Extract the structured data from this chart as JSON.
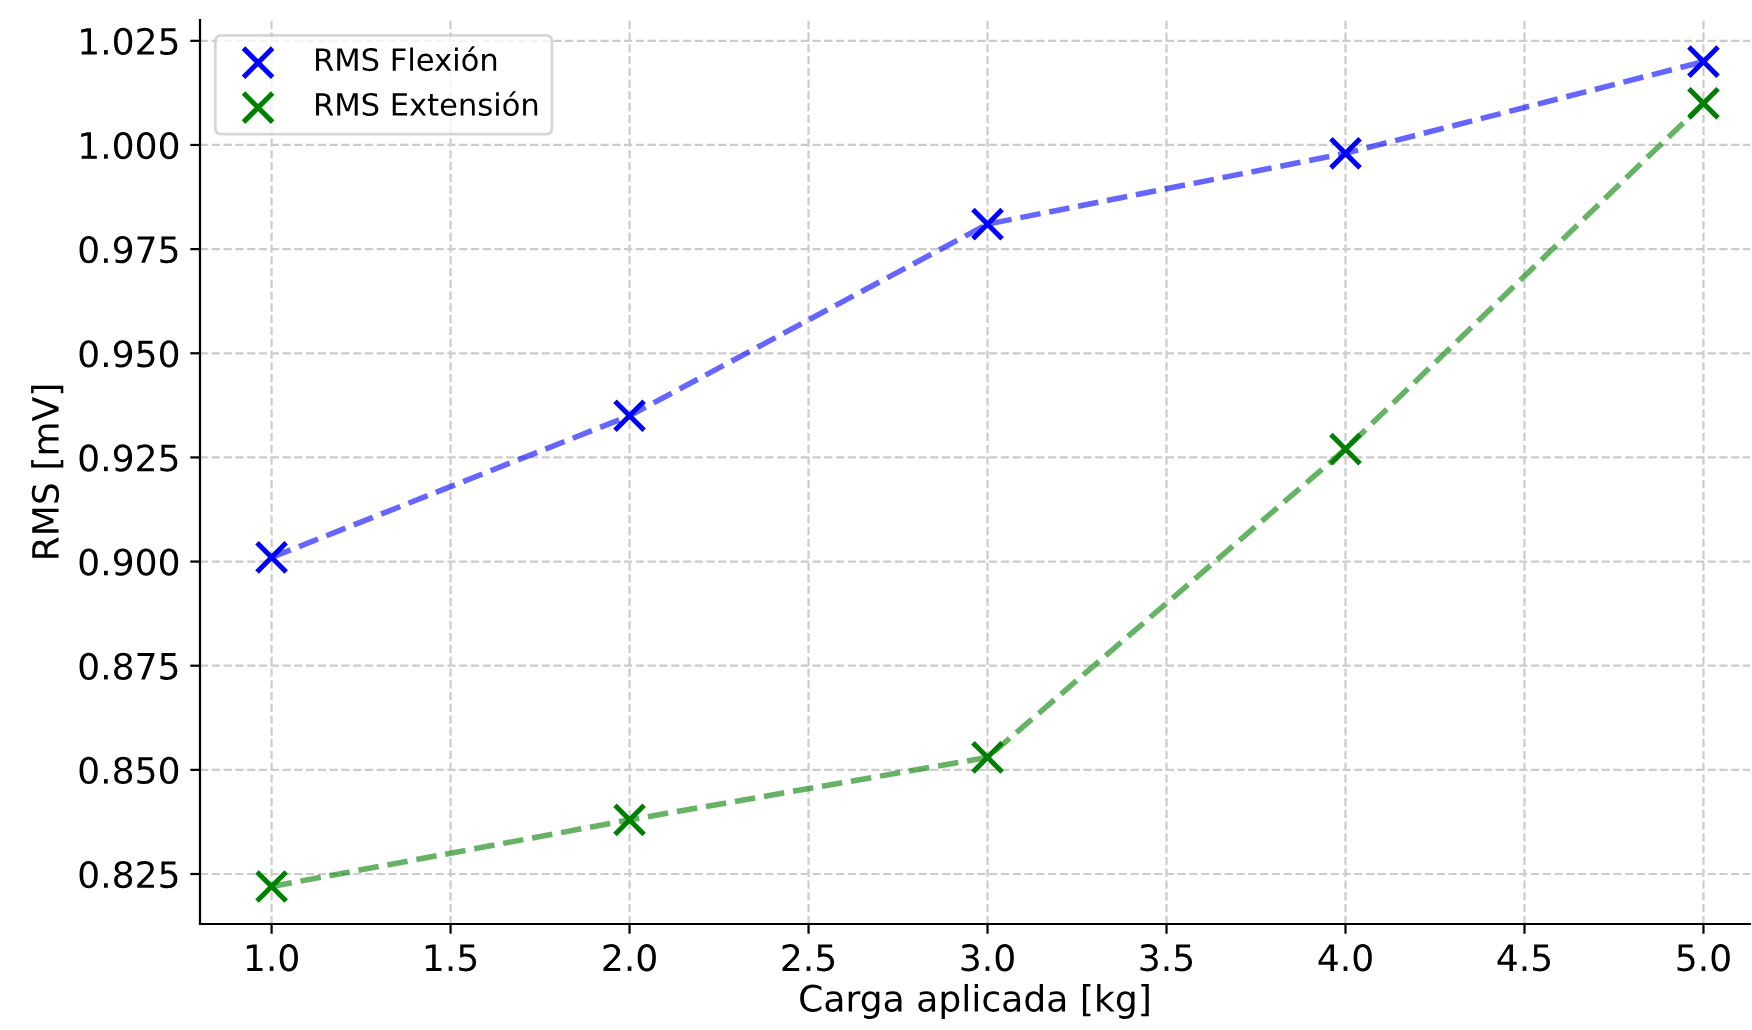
{
  "chart_data": {
    "type": "line",
    "xlabel": "Carga aplicada [kg]",
    "ylabel": "RMS [mV]",
    "x": [
      1.0,
      2.0,
      3.0,
      4.0,
      5.0
    ],
    "series": [
      {
        "name": "RMS Flexión",
        "color": "#0000ff",
        "values": [
          0.901,
          0.935,
          0.981,
          0.998,
          1.02
        ]
      },
      {
        "name": "RMS Extensión",
        "color": "#008000",
        "values": [
          0.822,
          0.838,
          0.853,
          0.927,
          1.01
        ]
      }
    ],
    "xlim": [
      0.8,
      5.13
    ],
    "xticks": [
      {
        "value": 1.0,
        "label": "1.0"
      },
      {
        "value": 1.5,
        "label": "1.5"
      },
      {
        "value": 2.0,
        "label": "2.0"
      },
      {
        "value": 2.5,
        "label": "2.5"
      },
      {
        "value": 3.0,
        "label": "3.0"
      },
      {
        "value": 3.5,
        "label": "3.5"
      },
      {
        "value": 4.0,
        "label": "4.0"
      },
      {
        "value": 4.5,
        "label": "4.5"
      },
      {
        "value": 5.0,
        "label": "5.0"
      }
    ],
    "ylim": [
      0.813,
      1.03
    ],
    "yticks": [
      {
        "value": 0.825,
        "label": "0.825"
      },
      {
        "value": 0.85,
        "label": "0.850"
      },
      {
        "value": 0.875,
        "label": "0.875"
      },
      {
        "value": 0.9,
        "label": "0.900"
      },
      {
        "value": 0.925,
        "label": "0.925"
      },
      {
        "value": 0.95,
        "label": "0.950"
      },
      {
        "value": 0.975,
        "label": "0.975"
      },
      {
        "value": 1.0,
        "label": "1.000"
      },
      {
        "value": 1.025,
        "label": "1.025"
      }
    ],
    "grid": true,
    "legend": "top left",
    "marker": "cross",
    "line_style": "dashed"
  }
}
